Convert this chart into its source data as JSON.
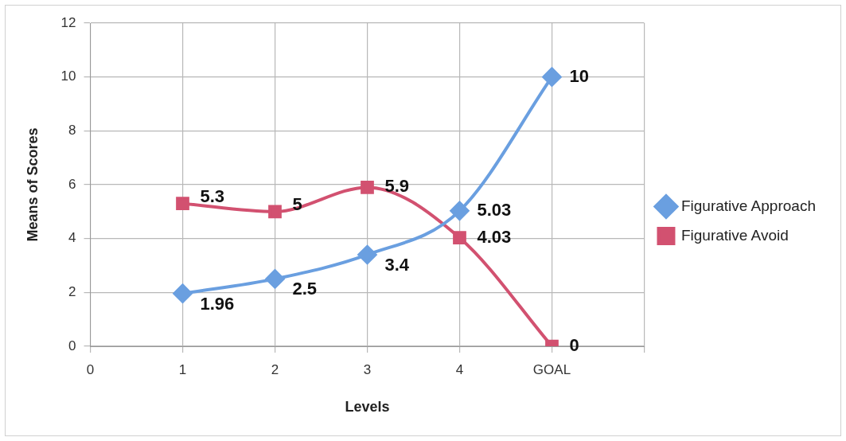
{
  "chart_data": {
    "type": "line",
    "xlabel": "Levels",
    "ylabel": "Means of Scores",
    "x": [
      1,
      2,
      3,
      4,
      5
    ],
    "series": [
      {
        "name": "Figurative Approach",
        "color": "#6a9fe0",
        "marker": "diamond",
        "values": [
          1.96,
          2.5,
          3.4,
          5.03,
          10
        ]
      },
      {
        "name": "Figurative Avoid",
        "color": "#d25170",
        "marker": "square",
        "values": [
          5.3,
          5,
          5.9,
          4.03,
          0
        ]
      }
    ],
    "xlim": [
      0,
      6
    ],
    "xticks": [
      0,
      1,
      2,
      3,
      4,
      {
        "value": 5,
        "label": "GOAL"
      },
      {
        "value": 6,
        "label": null
      }
    ],
    "ylim": [
      0,
      12
    ],
    "yticks": [
      0,
      2,
      4,
      6,
      8,
      10,
      12
    ],
    "grid": true,
    "legend": "right",
    "data_labels": true
  }
}
